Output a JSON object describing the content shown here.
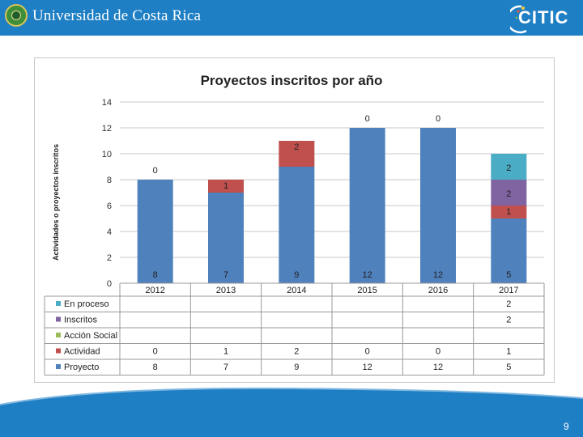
{
  "header": {
    "university_name": "Universidad de Costa Rica",
    "logo_text": "CITIC",
    "bar_color": "#1f7fc4"
  },
  "footer": {
    "page_number": "9"
  },
  "chart_data": {
    "type": "bar",
    "stacked": true,
    "title": "Proyectos inscritos por año",
    "xlabel": "",
    "ylabel": "Actividades o proyectos inscritos",
    "ylim": [
      0,
      14
    ],
    "yticks": [
      0,
      2,
      4,
      6,
      8,
      10,
      12,
      14
    ],
    "grid": true,
    "categories": [
      "2012",
      "2013",
      "2014",
      "2015",
      "2016",
      "2017"
    ],
    "series": [
      {
        "name": "Proyecto",
        "color": "#4f81bd",
        "values": [
          8,
          7,
          9,
          12,
          12,
          5
        ]
      },
      {
        "name": "Actividad",
        "color": "#c0504d",
        "values": [
          0,
          1,
          2,
          0,
          0,
          1
        ]
      },
      {
        "name": "Acción Social",
        "color": "#9bbb59",
        "values": [
          null,
          null,
          null,
          null,
          null,
          null
        ]
      },
      {
        "name": "Inscritos",
        "color": "#8064a2",
        "values": [
          null,
          null,
          null,
          null,
          null,
          2
        ]
      },
      {
        "name": "En proceso",
        "color": "#4bacc6",
        "values": [
          null,
          null,
          null,
          null,
          null,
          2
        ]
      }
    ],
    "legend": "data-table"
  }
}
